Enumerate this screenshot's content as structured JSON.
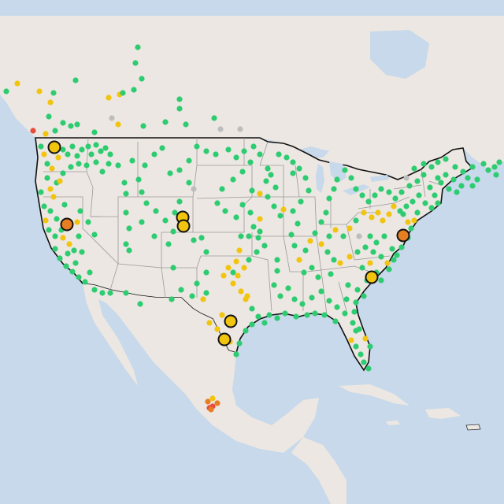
{
  "map": {
    "colors": {
      "water": "#c7d9ea",
      "land": "#ece7e2",
      "land_shadow": "#e2dcd6",
      "state_border": "#9a9a9a",
      "country_border": "#111111",
      "good": "#2ecc71",
      "moderate": "#f1c40f",
      "unhealthy_sensitive": "#e67e22",
      "unhealthy": "#e74c3c",
      "no_data": "#bdbdbd"
    },
    "stations": [
      {
        "id": "wa-seattle",
        "category": "moderate",
        "highlighted": true
      },
      {
        "id": "ca-sacramento",
        "category": "unhealthy_sensitive",
        "highlighted": true
      },
      {
        "id": "co-denver-north",
        "category": "moderate",
        "highlighted": true
      },
      {
        "id": "co-denver-south",
        "category": "moderate",
        "highlighted": true
      },
      {
        "id": "tx-dfw",
        "category": "moderate",
        "highlighted": true
      },
      {
        "id": "tx-laredo",
        "category": "moderate",
        "highlighted": true
      },
      {
        "id": "sc-columbia",
        "category": "moderate",
        "highlighted": true
      },
      {
        "id": "md-baltimore",
        "category": "unhealthy_sensitive",
        "highlighted": true
      }
    ]
  }
}
